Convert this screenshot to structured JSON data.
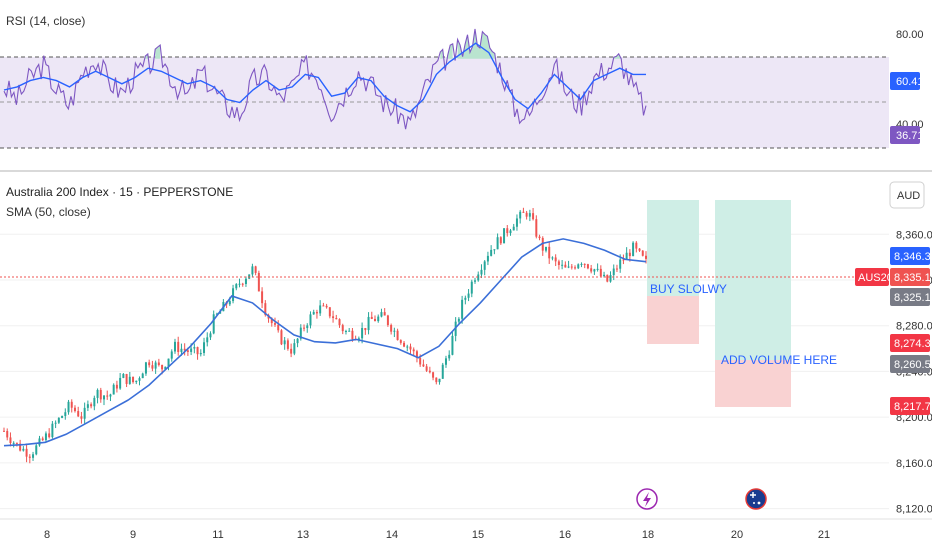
{
  "colors": {
    "up": "#26a69a",
    "down": "#ef5350",
    "sma": "#3b6fd8",
    "rsi": "#7e57c2",
    "rsi_ma": "#2962ff",
    "rsi_band": "#ede7f6",
    "long_profit": "#cfeee6",
    "long_loss": "#f9d2d2",
    "axis_text": "#333333",
    "grid": "#f0f0f0"
  },
  "rsi_panel": {
    "legend": "RSI (14, close)",
    "ticks": [
      "80.00",
      "40.00"
    ],
    "badges": [
      {
        "label": "60.41",
        "color": "#2962ff"
      },
      {
        "label": "36.71",
        "color": "#7e57c2"
      }
    ]
  },
  "price_panel": {
    "title": "Australia 200 Index · 15 · PEPPERSTONE",
    "sma_legend": "SMA (50, close)",
    "currency": "AUD",
    "price_ticks": [
      "8,360.0",
      "8,320.0",
      "8,280.0",
      "8,240.0",
      "8,200.0",
      "8,160.0",
      "8,120.0"
    ],
    "badges": [
      {
        "label": "8,346.3",
        "color": "#2962ff"
      },
      {
        "label": "8,335.1",
        "color": "#ef5350"
      },
      {
        "label": "8,325.1",
        "color": "#787b86"
      },
      {
        "label": "8,274.3",
        "color": "#f23645"
      },
      {
        "label": "8,260.5",
        "color": "#787b86"
      },
      {
        "label": "8,217.7",
        "color": "#f23645"
      }
    ],
    "symbol_tag": "AUS200",
    "annotations": [
      "BUY SLOLWY",
      "ADD VOLUME HERE"
    ]
  },
  "time_axis": {
    "labels": [
      "8",
      "9",
      "11",
      "13",
      "14",
      "15",
      "16",
      "18",
      "20",
      "21"
    ]
  },
  "chart_data": {
    "type": "candlestick",
    "title": "Australia 200 Index · 15 · PEPPERSTONE",
    "currency": "AUD",
    "ylim": [
      8110,
      8390
    ],
    "x_labels": [
      "8",
      "9",
      "11",
      "13",
      "14",
      "15",
      "16",
      "18",
      "20",
      "21"
    ],
    "price_series_approx": [
      8188,
      8175,
      8168,
      8180,
      8195,
      8210,
      8200,
      8222,
      8218,
      8235,
      8230,
      8250,
      8242,
      8262,
      8258,
      8255,
      8285,
      8300,
      8318,
      8330,
      8292,
      8270,
      8258,
      8282,
      8296,
      8290,
      8275,
      8272,
      8285,
      8288,
      8272,
      8260,
      8245,
      8228,
      8260,
      8300,
      8325,
      8345,
      8358,
      8372,
      8380,
      8350,
      8335,
      8328,
      8338,
      8330,
      8318,
      8335,
      8348,
      8335
    ],
    "sma_series_approx": [
      8175,
      8176,
      8178,
      8185,
      8195,
      8205,
      8215,
      8228,
      8245,
      8262,
      8282,
      8306,
      8300,
      8285,
      8272,
      8266,
      8265,
      8268,
      8264,
      8260,
      8252,
      8262,
      8282,
      8300,
      8320,
      8340,
      8352,
      8356,
      8352,
      8346,
      8338,
      8336
    ],
    "last_price": 8335.1,
    "sma_value": 8346.3,
    "positions": [
      {
        "label": "BUY SLOLWY",
        "entry": 8325.1,
        "target": 8382.0,
        "stop": 8274.3
      },
      {
        "label": "ADD VOLUME HERE",
        "entry": 8260.5,
        "target": 8382.0,
        "stop": 8217.7
      }
    ],
    "rsi": {
      "legend": "RSI (14, close)",
      "length": 14,
      "ticks": [
        80,
        40
      ],
      "band": [
        70,
        30
      ],
      "last": 36.71,
      "ma_last": 60.41,
      "series_approx": [
        52,
        44,
        58,
        66,
        50,
        40,
        62,
        70,
        56,
        48,
        60,
        66,
        72,
        54,
        46,
        62,
        50,
        40,
        34,
        56,
        60,
        44,
        52,
        66,
        58,
        36,
        48,
        62,
        54,
        42,
        36,
        28,
        48,
        66,
        72,
        76,
        86,
        80,
        62,
        38,
        32,
        50,
        66,
        48,
        40,
        58,
        64,
        70,
        52,
        37
      ],
      "ma_series_approx": [
        50,
        52,
        56,
        58,
        56,
        52,
        58,
        62,
        58,
        54,
        58,
        64,
        62,
        58,
        54,
        56,
        52,
        44,
        42,
        50,
        56,
        50,
        52,
        60,
        58,
        46,
        48,
        58,
        56,
        46,
        40,
        36,
        44,
        60,
        68,
        74,
        80,
        74,
        58,
        44,
        38,
        48,
        60,
        52,
        44,
        56,
        60,
        64,
        60,
        60
      ]
    }
  }
}
